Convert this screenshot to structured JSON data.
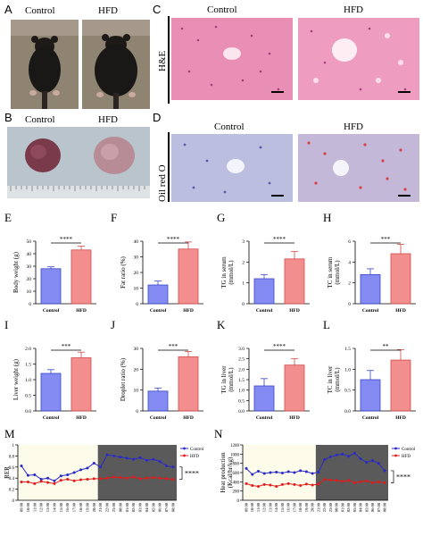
{
  "panels": {
    "A": {
      "letter": "A",
      "labels": [
        "Control",
        "HFD"
      ]
    },
    "B": {
      "letter": "B",
      "labels": [
        "Control",
        "HFD"
      ]
    },
    "C": {
      "letter": "C",
      "labels": [
        "Control",
        "HFD"
      ],
      "side_label": "H&E"
    },
    "D": {
      "letter": "D",
      "labels": [
        "Control",
        "HFD"
      ],
      "side_label": "Oil red O"
    }
  },
  "colors": {
    "control": "#6f78f2",
    "hfd": "#f07a7a",
    "control_line": "#2a2ac8",
    "hfd_line": "#e01b1b",
    "he_tissue": "#e88fb6",
    "oro_tissue": "#b6b8dc",
    "dark_phase": "#5a5a5a",
    "light_phase": "#fdfbea"
  },
  "chart_data": [
    {
      "id": "E",
      "type": "bar",
      "categories": [
        "Control",
        "HFD"
      ],
      "values": [
        28,
        43
      ],
      "errors": [
        1.5,
        3
      ],
      "ylabel": "Body weight (g)",
      "ylim": [
        0,
        50
      ],
      "yticks": [
        0,
        10,
        20,
        30,
        40,
        50
      ],
      "significance": "****"
    },
    {
      "id": "F",
      "type": "bar",
      "categories": [
        "Control",
        "HFD"
      ],
      "values": [
        12,
        35
      ],
      "errors": [
        2.5,
        4.5
      ],
      "ylabel": "Fat ratio (%)",
      "ylim": [
        0,
        40
      ],
      "yticks": [
        0,
        10,
        20,
        30,
        40
      ],
      "significance": "****"
    },
    {
      "id": "G",
      "type": "bar",
      "categories": [
        "Control",
        "HFD"
      ],
      "values": [
        1.2,
        2.15
      ],
      "errors": [
        0.2,
        0.35
      ],
      "ylabel": "TG in serum (mmol/L)",
      "ylim": [
        0,
        3
      ],
      "yticks": [
        0,
        1,
        2,
        3
      ],
      "significance": "****"
    },
    {
      "id": "H",
      "type": "bar",
      "categories": [
        "Control",
        "HFD"
      ],
      "values": [
        2.8,
        4.8
      ],
      "errors": [
        0.55,
        0.9
      ],
      "ylabel": "TC in serum (mmol/L)",
      "ylim": [
        0,
        6
      ],
      "yticks": [
        0,
        2,
        4,
        6
      ],
      "significance": "***"
    },
    {
      "id": "I",
      "type": "bar",
      "categories": [
        "Control",
        "HFD"
      ],
      "values": [
        1.2,
        1.7
      ],
      "errors": [
        0.12,
        0.18
      ],
      "ylabel": "Liver weight (g)",
      "ylim": [
        0,
        2.0
      ],
      "yticks": [
        0.0,
        0.5,
        1.0,
        1.5,
        2.0
      ],
      "significance": "***"
    },
    {
      "id": "J",
      "type": "bar",
      "categories": [
        "Control",
        "HFD"
      ],
      "values": [
        9.5,
        26
      ],
      "errors": [
        1.5,
        2.5
      ],
      "ylabel": "Droplet ratio (%)",
      "ylim": [
        0,
        30
      ],
      "yticks": [
        0,
        10,
        20,
        30
      ],
      "significance": "***"
    },
    {
      "id": "K",
      "type": "bar",
      "categories": [
        "Control",
        "HFD"
      ],
      "values": [
        1.2,
        2.2
      ],
      "errors": [
        0.35,
        0.3
      ],
      "ylabel": "TG in liver (mmol/L)",
      "ylim": [
        0,
        3.0
      ],
      "yticks": [
        0.0,
        0.5,
        1.0,
        1.5,
        2.0,
        2.5,
        3.0
      ],
      "significance": "****"
    },
    {
      "id": "L",
      "type": "bar",
      "categories": [
        "Control",
        "HFD"
      ],
      "values": [
        0.75,
        1.22
      ],
      "errors": [
        0.22,
        0.25
      ],
      "ylabel": "TC in liver (mmol/L)",
      "ylim": [
        0,
        1.5
      ],
      "yticks": [
        0.0,
        0.5,
        1.0,
        1.5
      ],
      "significance": "**"
    },
    {
      "id": "M",
      "type": "line",
      "ylabel": "RER",
      "ylim": [
        0,
        1.0
      ],
      "yticks": [
        0,
        0.2,
        0.4,
        0.6,
        0.8,
        1.0
      ],
      "x": [
        "09:00",
        "10:00",
        "11:00",
        "12:00",
        "13:00",
        "14:00",
        "15:00",
        "16:00",
        "17:00",
        "18:00",
        "19:00",
        "20:00",
        "21:00",
        "22:00",
        "23:00",
        "00:00",
        "01:00",
        "02:00",
        "03:00",
        "04:00",
        "05:00",
        "06:00",
        "07:00",
        "08:00"
      ],
      "dark_period": [
        "21:00",
        "08:00"
      ],
      "series": [
        {
          "name": "Control",
          "values": [
            0.62,
            0.45,
            0.46,
            0.38,
            0.4,
            0.35,
            0.44,
            0.46,
            0.5,
            0.55,
            0.58,
            0.67,
            0.6,
            0.82,
            0.8,
            0.78,
            0.76,
            0.74,
            0.77,
            0.72,
            0.74,
            0.7,
            0.62,
            0.6
          ]
        },
        {
          "name": "HFD",
          "values": [
            0.33,
            0.33,
            0.3,
            0.34,
            0.32,
            0.3,
            0.36,
            0.38,
            0.35,
            0.37,
            0.38,
            0.39,
            0.39,
            0.4,
            0.42,
            0.41,
            0.4,
            0.42,
            0.39,
            0.4,
            0.41,
            0.4,
            0.39,
            0.38
          ]
        }
      ],
      "significance": "****",
      "legend_position": "top-right"
    },
    {
      "id": "N",
      "type": "line",
      "ylabel": "Heat production (Kcal/hr/kg)",
      "ylim": [
        0,
        1200
      ],
      "yticks": [
        0,
        200,
        400,
        600,
        800,
        1000,
        1200
      ],
      "x": [
        "09:00",
        "10:00",
        "11:00",
        "12:00",
        "13:00",
        "14:00",
        "15:00",
        "16:00",
        "17:00",
        "18:00",
        "19:00",
        "20:00",
        "21:00",
        "22:00",
        "23:00",
        "00:00",
        "01:00",
        "02:00",
        "03:00",
        "04:00",
        "05:00",
        "06:00",
        "07:00",
        "08:00"
      ],
      "dark_period": [
        "21:00",
        "08:00"
      ],
      "series": [
        {
          "name": "Control",
          "values": [
            690,
            560,
            630,
            580,
            600,
            610,
            590,
            620,
            600,
            640,
            620,
            580,
            610,
            880,
            940,
            980,
            1000,
            950,
            1020,
            900,
            820,
            860,
            800,
            640
          ]
        },
        {
          "name": "HFD",
          "values": [
            360,
            320,
            300,
            340,
            330,
            300,
            340,
            360,
            340,
            320,
            350,
            330,
            350,
            450,
            440,
            430,
            410,
            430,
            380,
            400,
            420,
            380,
            400,
            380
          ]
        }
      ],
      "significance": "****",
      "legend_position": "top-right"
    }
  ]
}
